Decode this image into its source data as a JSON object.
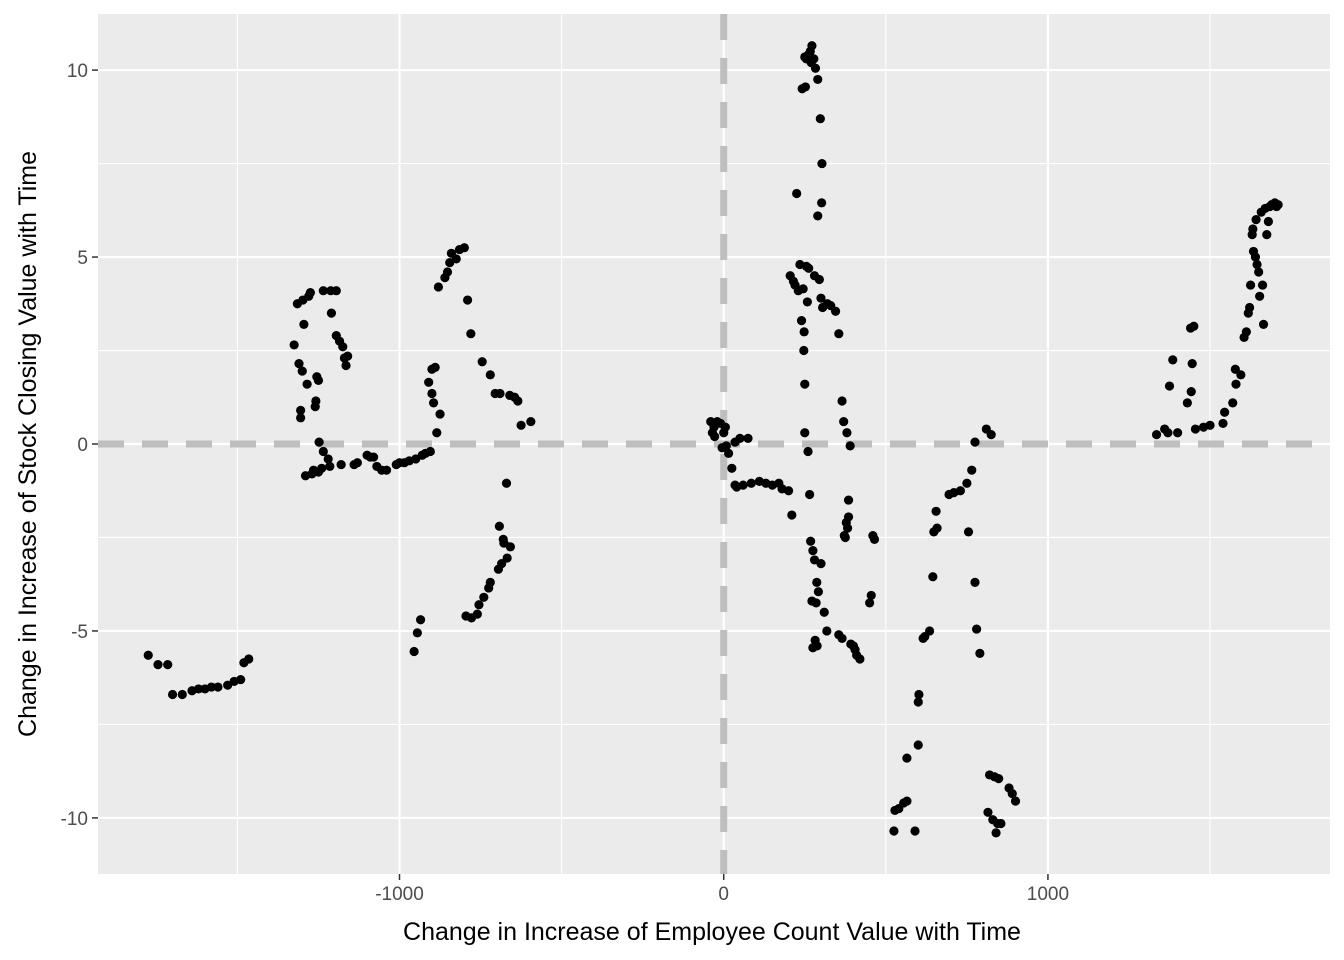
{
  "chart_data": {
    "type": "scatter",
    "xlabel": "Change in Increase of Employee Count Value with Time",
    "ylabel": "Change in Increase of Stock Closing Value with Time",
    "xlim": [
      -1930,
      1870
    ],
    "ylim": [
      -11.5,
      11.5
    ],
    "x_ticks": [
      -1000,
      0,
      1000
    ],
    "x_tick_labels": [
      "-1000",
      "0",
      "1000"
    ],
    "x_minor_ticks": [
      -1500,
      -500,
      500,
      1500
    ],
    "y_ticks": [
      -10,
      -5,
      0,
      5,
      10
    ],
    "y_tick_labels": [
      "-10",
      "-5",
      "0",
      "5",
      "10"
    ],
    "y_minor_ticks": [
      -7.5,
      -2.5,
      2.5,
      7.5
    ],
    "grid": true,
    "reference_lines": [
      {
        "axis": "x",
        "value": 0,
        "style": "dashed",
        "color": "#bebebe"
      },
      {
        "axis": "y",
        "value": 0,
        "style": "dashed",
        "color": "#bebebe"
      }
    ],
    "colors": {
      "panel": "#ebebeb",
      "grid": "#ffffff",
      "point": "#000000"
    },
    "points": [
      [
        -1775,
        -5.65
      ],
      [
        -1745,
        -5.9
      ],
      [
        -1715,
        -5.9
      ],
      [
        -1700,
        -6.7
      ],
      [
        -1670,
        -6.7
      ],
      [
        -1640,
        -6.6
      ],
      [
        -1620,
        -6.55
      ],
      [
        -1600,
        -6.55
      ],
      [
        -1580,
        -6.5
      ],
      [
        -1560,
        -6.5
      ],
      [
        -1530,
        -6.45
      ],
      [
        -1510,
        -6.35
      ],
      [
        -1490,
        -6.3
      ],
      [
        -1480,
        -5.85
      ],
      [
        -1465,
        -5.75
      ],
      [
        -1325,
        2.65
      ],
      [
        -1315,
        3.75
      ],
      [
        -1310,
        2.15
      ],
      [
        -1305,
        0.7
      ],
      [
        -1305,
        0.9
      ],
      [
        -1300,
        1.95
      ],
      [
        -1298,
        3.85
      ],
      [
        -1295,
        3.2
      ],
      [
        -1290,
        -0.85
      ],
      [
        -1285,
        1.6
      ],
      [
        -1280,
        3.95
      ],
      [
        -1275,
        4.05
      ],
      [
        -1270,
        -0.8
      ],
      [
        -1265,
        -0.7
      ],
      [
        -1260,
        1.0
      ],
      [
        -1258,
        1.15
      ],
      [
        -1255,
        1.8
      ],
      [
        -1250,
        1.7
      ],
      [
        -1250,
        -0.75
      ],
      [
        -1248,
        0.05
      ],
      [
        -1240,
        -0.65
      ],
      [
        -1235,
        4.1
      ],
      [
        -1235,
        -0.2
      ],
      [
        -1220,
        -0.4
      ],
      [
        -1215,
        -0.6
      ],
      [
        -1212,
        4.1
      ],
      [
        -1210,
        3.5
      ],
      [
        -1195,
        4.1
      ],
      [
        -1195,
        2.9
      ],
      [
        -1185,
        2.75
      ],
      [
        -1180,
        -0.55
      ],
      [
        -1175,
        2.6
      ],
      [
        -1170,
        2.3
      ],
      [
        -1165,
        2.1
      ],
      [
        -1160,
        2.35
      ],
      [
        -1140,
        -0.55
      ],
      [
        -1130,
        -0.5
      ],
      [
        -1100,
        -0.3
      ],
      [
        -1090,
        -0.35
      ],
      [
        -1080,
        -0.35
      ],
      [
        -1070,
        -0.6
      ],
      [
        -1055,
        -0.7
      ],
      [
        -1040,
        -0.7
      ],
      [
        -1010,
        -0.55
      ],
      [
        -1000,
        -0.5
      ],
      [
        -985,
        -0.5
      ],
      [
        -970,
        -0.45
      ],
      [
        -955,
        -5.55
      ],
      [
        -950,
        -0.4
      ],
      [
        -945,
        -5.05
      ],
      [
        -935,
        -4.7
      ],
      [
        -930,
        -0.3
      ],
      [
        -920,
        -0.25
      ],
      [
        -910,
        1.65
      ],
      [
        -905,
        -0.2
      ],
      [
        -900,
        1.35
      ],
      [
        -900,
        2.0
      ],
      [
        -895,
        1.1
      ],
      [
        -890,
        2.05
      ],
      [
        -885,
        0.3
      ],
      [
        -880,
        4.2
      ],
      [
        -875,
        0.8
      ],
      [
        -860,
        4.45
      ],
      [
        -852,
        4.6
      ],
      [
        -845,
        4.85
      ],
      [
        -840,
        5.1
      ],
      [
        -825,
        4.95
      ],
      [
        -815,
        5.2
      ],
      [
        -800,
        5.25
      ],
      [
        -795,
        -4.6
      ],
      [
        -790,
        3.85
      ],
      [
        -780,
        2.95
      ],
      [
        -778,
        -4.65
      ],
      [
        -760,
        -4.55
      ],
      [
        -755,
        -4.3
      ],
      [
        -745,
        2.2
      ],
      [
        -740,
        -4.1
      ],
      [
        -725,
        -3.85
      ],
      [
        -720,
        1.85
      ],
      [
        -720,
        -3.7
      ],
      [
        -705,
        1.35
      ],
      [
        -695,
        -3.35
      ],
      [
        -692,
        -2.2
      ],
      [
        -690,
        1.35
      ],
      [
        -685,
        -3.2
      ],
      [
        -680,
        -2.55
      ],
      [
        -678,
        -2.65
      ],
      [
        -670,
        -1.05
      ],
      [
        -668,
        -3.05
      ],
      [
        -660,
        1.3
      ],
      [
        -658,
        -2.75
      ],
      [
        -645,
        1.25
      ],
      [
        -635,
        1.15
      ],
      [
        -625,
        0.5
      ],
      [
        -595,
        0.6
      ],
      [
        -40,
        0.6
      ],
      [
        -35,
        0.3
      ],
      [
        -30,
        0.45
      ],
      [
        -28,
        0.2
      ],
      [
        -20,
        0.6
      ],
      [
        -10,
        0.55
      ],
      [
        -5,
        -0.1
      ],
      [
        0,
        0.3
      ],
      [
        5,
        0.45
      ],
      [
        8,
        -0.05
      ],
      [
        15,
        -0.25
      ],
      [
        25,
        -0.65
      ],
      [
        35,
        0.05
      ],
      [
        35,
        -1.1
      ],
      [
        40,
        -1.15
      ],
      [
        50,
        0.15
      ],
      [
        60,
        -1.1
      ],
      [
        75,
        0.15
      ],
      [
        85,
        -1.05
      ],
      [
        110,
        -1.0
      ],
      [
        130,
        -1.05
      ],
      [
        150,
        -1.1
      ],
      [
        170,
        -1.05
      ],
      [
        180,
        -1.2
      ],
      [
        200,
        -1.25
      ],
      [
        205,
        4.5
      ],
      [
        210,
        -1.9
      ],
      [
        215,
        4.35
      ],
      [
        220,
        4.25
      ],
      [
        225,
        6.7
      ],
      [
        230,
        4.1
      ],
      [
        235,
        4.8
      ],
      [
        240,
        3.3
      ],
      [
        242,
        9.5
      ],
      [
        245,
        4.15
      ],
      [
        247,
        2.5
      ],
      [
        248,
        3.0
      ],
      [
        250,
        10.35
      ],
      [
        250,
        1.6
      ],
      [
        250,
        0.3
      ],
      [
        252,
        9.55
      ],
      [
        255,
        10.3
      ],
      [
        255,
        4.75
      ],
      [
        258,
        3.8
      ],
      [
        260,
        10.4
      ],
      [
        260,
        -0.2
      ],
      [
        262,
        4.7
      ],
      [
        265,
        -1.35
      ],
      [
        267,
        10.5
      ],
      [
        268,
        -2.6
      ],
      [
        270,
        10.2
      ],
      [
        272,
        10.65
      ],
      [
        272,
        -4.2
      ],
      [
        275,
        -2.85
      ],
      [
        275,
        -5.45
      ],
      [
        278,
        10.3
      ],
      [
        280,
        4.5
      ],
      [
        280,
        -3.1
      ],
      [
        282,
        -5.25
      ],
      [
        283,
        10.05
      ],
      [
        285,
        -4.25
      ],
      [
        287,
        -3.7
      ],
      [
        288,
        -5.4
      ],
      [
        290,
        9.75
      ],
      [
        290,
        6.1
      ],
      [
        292,
        -3.95
      ],
      [
        295,
        4.4
      ],
      [
        298,
        8.7
      ],
      [
        300,
        3.9
      ],
      [
        300,
        -3.2
      ],
      [
        302,
        6.45
      ],
      [
        303,
        7.5
      ],
      [
        305,
        3.65
      ],
      [
        310,
        -4.5
      ],
      [
        318,
        -5.0
      ],
      [
        320,
        3.75
      ],
      [
        330,
        3.7
      ],
      [
        345,
        3.55
      ],
      [
        355,
        2.95
      ],
      [
        355,
        -5.1
      ],
      [
        365,
        1.15
      ],
      [
        365,
        -5.2
      ],
      [
        370,
        0.6
      ],
      [
        372,
        -2.45
      ],
      [
        375,
        -2.5
      ],
      [
        378,
        -2.1
      ],
      [
        380,
        0.3
      ],
      [
        382,
        -2.25
      ],
      [
        385,
        -1.95
      ],
      [
        385,
        -1.5
      ],
      [
        390,
        -0.05
      ],
      [
        392,
        -5.35
      ],
      [
        400,
        -5.4
      ],
      [
        405,
        -5.5
      ],
      [
        410,
        -5.65
      ],
      [
        420,
        -5.75
      ],
      [
        450,
        -4.25
      ],
      [
        455,
        -4.05
      ],
      [
        460,
        -2.45
      ],
      [
        465,
        -2.55
      ],
      [
        525,
        -10.35
      ],
      [
        528,
        -9.8
      ],
      [
        540,
        -9.75
      ],
      [
        555,
        -9.6
      ],
      [
        565,
        -9.55
      ],
      [
        565,
        -8.4
      ],
      [
        590,
        -10.35
      ],
      [
        600,
        -8.05
      ],
      [
        600,
        -6.9
      ],
      [
        602,
        -6.7
      ],
      [
        615,
        -5.2
      ],
      [
        620,
        -5.15
      ],
      [
        635,
        -5.0
      ],
      [
        645,
        -3.55
      ],
      [
        648,
        -2.35
      ],
      [
        655,
        -1.8
      ],
      [
        658,
        -2.25
      ],
      [
        695,
        -1.35
      ],
      [
        710,
        -1.3
      ],
      [
        730,
        -1.25
      ],
      [
        750,
        -1.05
      ],
      [
        755,
        -2.35
      ],
      [
        765,
        -0.7
      ],
      [
        775,
        0.05
      ],
      [
        775,
        -3.7
      ],
      [
        780,
        -4.95
      ],
      [
        790,
        -5.6
      ],
      [
        810,
        0.4
      ],
      [
        815,
        -9.85
      ],
      [
        820,
        -8.85
      ],
      [
        825,
        0.25
      ],
      [
        830,
        -10.05
      ],
      [
        835,
        -8.9
      ],
      [
        840,
        -10.4
      ],
      [
        845,
        -10.15
      ],
      [
        848,
        -8.95
      ],
      [
        855,
        -10.15
      ],
      [
        880,
        -9.2
      ],
      [
        890,
        -9.35
      ],
      [
        900,
        -9.55
      ],
      [
        1335,
        0.25
      ],
      [
        1360,
        0.4
      ],
      [
        1370,
        0.3
      ],
      [
        1375,
        1.55
      ],
      [
        1385,
        2.25
      ],
      [
        1400,
        0.3
      ],
      [
        1430,
        1.1
      ],
      [
        1440,
        3.1
      ],
      [
        1442,
        1.4
      ],
      [
        1445,
        2.15
      ],
      [
        1450,
        3.15
      ],
      [
        1455,
        0.4
      ],
      [
        1480,
        0.45
      ],
      [
        1500,
        0.5
      ],
      [
        1540,
        0.55
      ],
      [
        1545,
        0.85
      ],
      [
        1570,
        1.1
      ],
      [
        1578,
        2.0
      ],
      [
        1580,
        1.6
      ],
      [
        1595,
        1.85
      ],
      [
        1605,
        2.85
      ],
      [
        1612,
        3.0
      ],
      [
        1618,
        3.5
      ],
      [
        1622,
        3.65
      ],
      [
        1625,
        4.25
      ],
      [
        1630,
        5.6
      ],
      [
        1632,
        5.75
      ],
      [
        1634,
        5.15
      ],
      [
        1640,
        5.0
      ],
      [
        1642,
        6.0
      ],
      [
        1645,
        4.8
      ],
      [
        1650,
        4.6
      ],
      [
        1653,
        3.95
      ],
      [
        1658,
        6.2
      ],
      [
        1662,
        4.25
      ],
      [
        1665,
        3.2
      ],
      [
        1670,
        6.3
      ],
      [
        1675,
        5.6
      ],
      [
        1680,
        5.95
      ],
      [
        1684,
        6.35
      ],
      [
        1690,
        6.4
      ],
      [
        1700,
        6.45
      ],
      [
        1705,
        6.35
      ],
      [
        1710,
        6.4
      ]
    ]
  }
}
